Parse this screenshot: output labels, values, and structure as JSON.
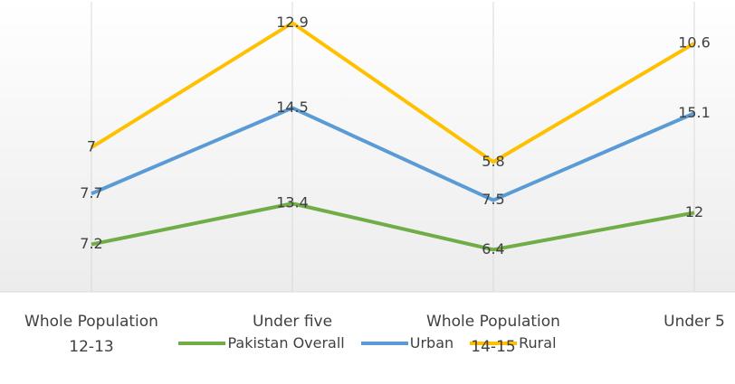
{
  "chart_data": {
    "type": "line",
    "stacked": true,
    "categories": [
      "Whole Population 12-13",
      "Under five",
      "Whole Population 14-15",
      "Under 5"
    ],
    "series": [
      {
        "name": "Pakistan Overall",
        "color": "#70ad47",
        "values": [
          7.2,
          13.4,
          6.4,
          12
        ]
      },
      {
        "name": "Urban",
        "color": "#5b9bd5",
        "values": [
          7.7,
          14.5,
          7.5,
          15.1
        ]
      },
      {
        "name": "Rural",
        "color": "#ffc000",
        "values": [
          7,
          12.9,
          5.8,
          10.6
        ]
      }
    ],
    "ylim": [
      0,
      44
    ],
    "legend": "bottom"
  }
}
